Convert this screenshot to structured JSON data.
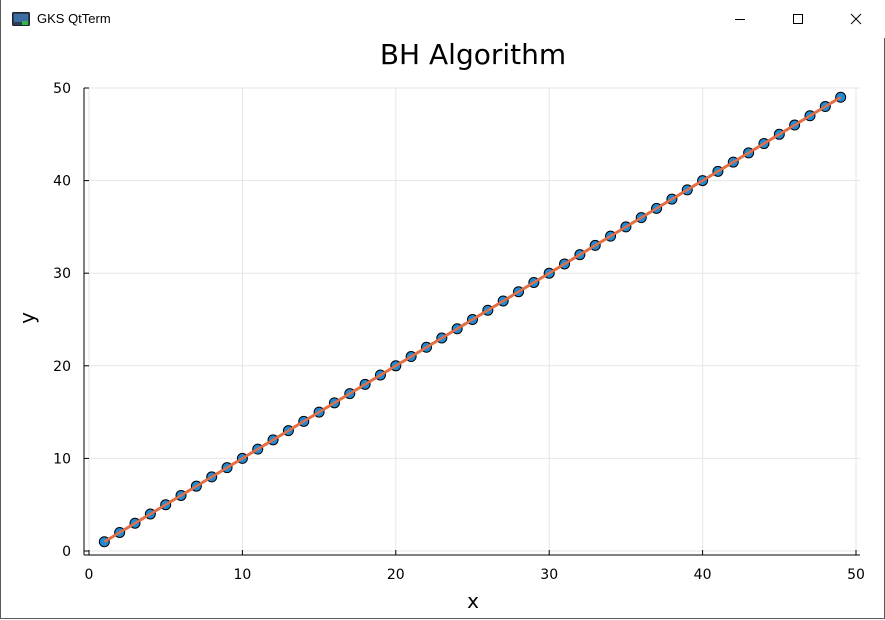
{
  "window": {
    "title": "GKS QtTerm",
    "icon": "gks-terminal-icon",
    "controls": [
      "minimize-icon",
      "maximize-icon",
      "close-icon"
    ]
  },
  "chart_data": {
    "type": "scatter",
    "title": "BH Algorithm",
    "xlabel": "x",
    "ylabel": "y",
    "xlim": [
      0,
      50
    ],
    "ylim": [
      0,
      50
    ],
    "xticks": [
      0,
      10,
      20,
      30,
      40,
      50
    ],
    "yticks": [
      0,
      10,
      20,
      30,
      40,
      50
    ],
    "grid": true,
    "legend": "none",
    "series": [
      {
        "kind": "markers",
        "color": "#1f8bd6",
        "x": [
          1,
          2,
          3,
          4,
          5,
          6,
          7,
          8,
          9,
          10,
          11,
          12,
          13,
          14,
          15,
          16,
          17,
          18,
          19,
          20,
          21,
          22,
          23,
          24,
          25,
          26,
          27,
          28,
          29,
          30,
          31,
          32,
          33,
          34,
          35,
          36,
          37,
          38,
          39,
          40,
          41,
          42,
          43,
          44,
          45,
          46,
          47,
          48,
          49
        ],
        "y": [
          1,
          2,
          3,
          4,
          5,
          6,
          7,
          8,
          9,
          10,
          11,
          12,
          13,
          14,
          15,
          16,
          17,
          18,
          19,
          20,
          21,
          22,
          23,
          24,
          25,
          26,
          27,
          28,
          29,
          30,
          31,
          32,
          33,
          34,
          35,
          36,
          37,
          38,
          39,
          40,
          41,
          42,
          43,
          44,
          45,
          46,
          47,
          48,
          49
        ]
      },
      {
        "kind": "line",
        "color": "#e26f46",
        "x": [
          1,
          49
        ],
        "y": [
          1,
          49
        ]
      }
    ]
  }
}
